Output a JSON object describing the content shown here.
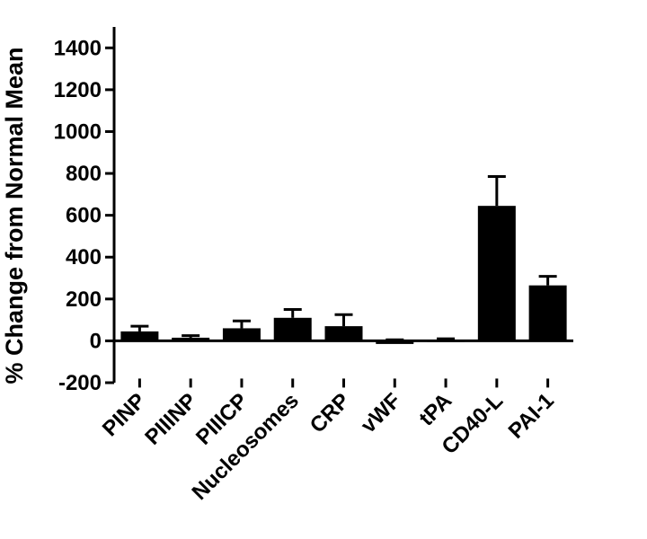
{
  "chart_data": {
    "type": "bar",
    "title": "",
    "xlabel": "",
    "ylabel": "% Change from Normal Mean",
    "ylim": [
      -200,
      1500
    ],
    "yticks": [
      -200,
      0,
      200,
      400,
      600,
      800,
      1000,
      1200,
      1400
    ],
    "grid": false,
    "legend": "none",
    "bar_color": "#000000",
    "error_bars": "upper only",
    "categories": [
      "PINP",
      "PIIINP",
      "PIIICP",
      "Nucleosomes",
      "CRP",
      "vWF",
      "tPA",
      "CD40-L",
      "PAI-1"
    ],
    "series": [
      {
        "values": [
          45,
          15,
          60,
          110,
          70,
          -15,
          -5,
          645,
          265
        ],
        "error_upper": [
          70,
          25,
          95,
          150,
          125,
          5,
          10,
          785,
          308
        ]
      }
    ]
  }
}
